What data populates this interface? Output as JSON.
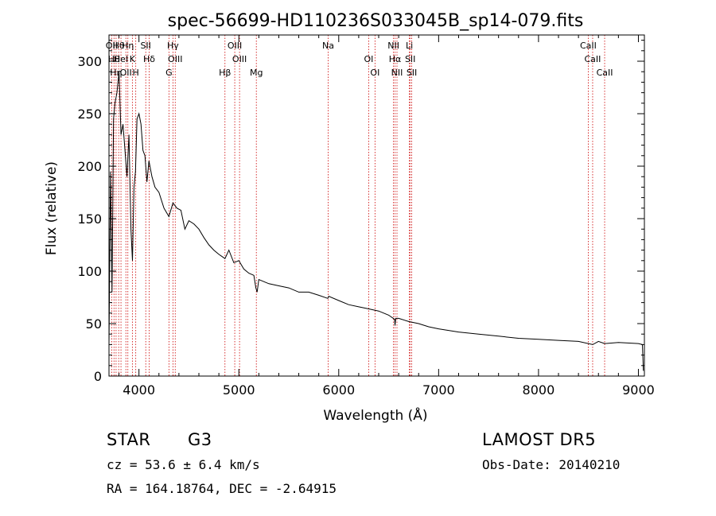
{
  "chart_data": {
    "type": "line",
    "title": "spec-56699-HD110236S033045B_sp14-079.fits",
    "xlabel": "Wavelength (Å)",
    "ylabel": "Flux (relative)",
    "xlim": [
      3700,
      9060
    ],
    "ylim": [
      0,
      325
    ],
    "xticks": [
      4000,
      5000,
      6000,
      7000,
      8000,
      9000
    ],
    "yticks": [
      0,
      50,
      100,
      150,
      200,
      250,
      300
    ],
    "grid": false,
    "line_color": "#000000",
    "marker_color": "#cc0000",
    "series": [
      {
        "x": [
          3700,
          3715,
          3730,
          3745,
          3760,
          3780,
          3800,
          3820,
          3840,
          3860,
          3880,
          3900,
          3920,
          3935,
          3950,
          3965,
          3980,
          4000,
          4020,
          4040,
          4060,
          4080,
          4100,
          4130,
          4160,
          4200,
          4250,
          4300,
          4340,
          4380,
          4420,
          4460,
          4500,
          4550,
          4600,
          4650,
          4700,
          4750,
          4800,
          4861,
          4900,
          4950,
          5000,
          5050,
          5100,
          5150,
          5170,
          5183,
          5200,
          5250,
          5300,
          5400,
          5500,
          5600,
          5700,
          5800,
          5890,
          5900,
          6000,
          6100,
          6200,
          6300,
          6400,
          6500,
          6560,
          6563,
          6570,
          6600,
          6700,
          6800,
          6900,
          7000,
          7200,
          7400,
          7600,
          7800,
          8000,
          8200,
          8400,
          8542,
          8600,
          8662,
          8800,
          9000,
          9040,
          9050
        ],
        "y": [
          30,
          195,
          80,
          245,
          260,
          270,
          290,
          230,
          240,
          215,
          190,
          230,
          140,
          110,
          180,
          195,
          245,
          250,
          240,
          215,
          210,
          185,
          205,
          190,
          180,
          175,
          160,
          152,
          165,
          160,
          158,
          140,
          148,
          145,
          140,
          132,
          125,
          120,
          116,
          112,
          120,
          108,
          110,
          102,
          98,
          96,
          84,
          80,
          92,
          90,
          88,
          86,
          84,
          80,
          80,
          77,
          74,
          76,
          72,
          68,
          66,
          64,
          62,
          58,
          54,
          48,
          55,
          55,
          52,
          50,
          47,
          45,
          42,
          40,
          38,
          36,
          35,
          34,
          33,
          30,
          33,
          31,
          32,
          31,
          30,
          5
        ]
      }
    ],
    "line_markers": [
      {
        "wave": 3727,
        "label": "OII"
      },
      {
        "wave": 3750,
        "label": "Hθ"
      },
      {
        "wave": 3771,
        "label": "Hη"
      },
      {
        "wave": 3797,
        "label": "Hθ"
      },
      {
        "wave": 3820,
        "label": "HeI"
      },
      {
        "wave": 3869,
        "label": "OII"
      },
      {
        "wave": 3889,
        "label": "Hη"
      },
      {
        "wave": 3934,
        "label": "K"
      },
      {
        "wave": 3968,
        "label": "H"
      },
      {
        "wave": 4068,
        "label": "SII"
      },
      {
        "wave": 4102,
        "label": "Hδ"
      },
      {
        "wave": 4300,
        "label": "G"
      },
      {
        "wave": 4340,
        "label": "Hγ"
      },
      {
        "wave": 4363,
        "label": "OIII"
      },
      {
        "wave": 4861,
        "label": "Hβ"
      },
      {
        "wave": 4959,
        "label": "OIII"
      },
      {
        "wave": 5007,
        "label": "OIII"
      },
      {
        "wave": 5175,
        "label": "Mg"
      },
      {
        "wave": 5894,
        "label": "Na"
      },
      {
        "wave": 6300,
        "label": "OI"
      },
      {
        "wave": 6363,
        "label": "OI"
      },
      {
        "wave": 6548,
        "label": "NII"
      },
      {
        "wave": 6563,
        "label": "Hα"
      },
      {
        "wave": 6583,
        "label": "NII"
      },
      {
        "wave": 6707,
        "label": "Li"
      },
      {
        "wave": 6716,
        "label": "SII"
      },
      {
        "wave": 6731,
        "label": "SII"
      },
      {
        "wave": 8498,
        "label": "CaII"
      },
      {
        "wave": 8542,
        "label": "CaII"
      },
      {
        "wave": 8662,
        "label": "CaII"
      }
    ]
  },
  "info": {
    "class": "STAR",
    "subclass": "G3",
    "survey": "LAMOST DR5",
    "cz": "cz = 53.6 ± 6.4 km/s",
    "obs_date": "Obs-Date: 20140210",
    "radec": "RA = 164.18764, DEC =  -2.64915"
  }
}
